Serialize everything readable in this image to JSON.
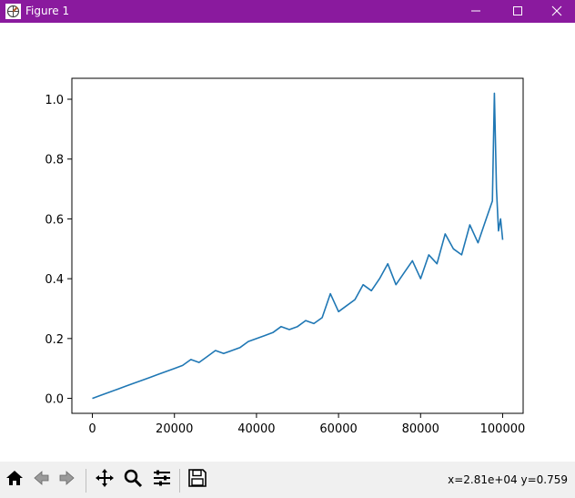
{
  "window": {
    "title": "Figure 1",
    "minimize_icon": "minimize-icon",
    "maximize_icon": "maximize-icon",
    "close_icon": "close-icon",
    "titlebar_color": "#8a1a9e"
  },
  "toolbar": {
    "buttons": [
      "home-icon",
      "back-arrow-icon",
      "forward-arrow-icon",
      "pan-icon",
      "zoom-icon",
      "configure-subplots-icon",
      "save-icon"
    ],
    "coords_text": "x=2.81e+04 y=0.759"
  },
  "chart_data": {
    "type": "line",
    "title": "",
    "xlabel": "",
    "ylabel": "",
    "xlim": [
      -5000,
      105000
    ],
    "ylim": [
      -0.05,
      1.07
    ],
    "x_ticks": [
      0,
      20000,
      40000,
      60000,
      80000,
      100000
    ],
    "x_tick_labels": [
      "0",
      "20000",
      "40000",
      "60000",
      "80000",
      "100000"
    ],
    "y_ticks": [
      0.0,
      0.2,
      0.4,
      0.6,
      0.8,
      1.0
    ],
    "y_tick_labels": [
      "0.0",
      "0.2",
      "0.4",
      "0.6",
      "0.8",
      "1.0"
    ],
    "grid": false,
    "series": [
      {
        "color": "#1f77b4",
        "x": [
          0,
          2000,
          4000,
          6000,
          8000,
          10000,
          12000,
          14000,
          16000,
          18000,
          20000,
          22000,
          24000,
          26000,
          28000,
          30000,
          32000,
          34000,
          36000,
          38000,
          40000,
          42000,
          44000,
          46000,
          48000,
          50000,
          52000,
          54000,
          56000,
          58000,
          60000,
          62000,
          64000,
          66000,
          68000,
          70000,
          72000,
          74000,
          76000,
          78000,
          80000,
          82000,
          84000,
          86000,
          88000,
          90000,
          92000,
          94000,
          96000,
          97500,
          98000,
          98500,
          99000,
          99500,
          100000
        ],
        "y": [
          0.0,
          0.01,
          0.02,
          0.03,
          0.04,
          0.05,
          0.06,
          0.07,
          0.08,
          0.09,
          0.1,
          0.11,
          0.13,
          0.12,
          0.14,
          0.16,
          0.15,
          0.16,
          0.17,
          0.19,
          0.2,
          0.21,
          0.22,
          0.24,
          0.23,
          0.24,
          0.26,
          0.25,
          0.27,
          0.35,
          0.29,
          0.31,
          0.33,
          0.38,
          0.36,
          0.4,
          0.45,
          0.38,
          0.42,
          0.46,
          0.4,
          0.48,
          0.45,
          0.55,
          0.5,
          0.48,
          0.58,
          0.52,
          0.6,
          0.66,
          1.02,
          0.7,
          0.56,
          0.6,
          0.53
        ]
      }
    ]
  }
}
